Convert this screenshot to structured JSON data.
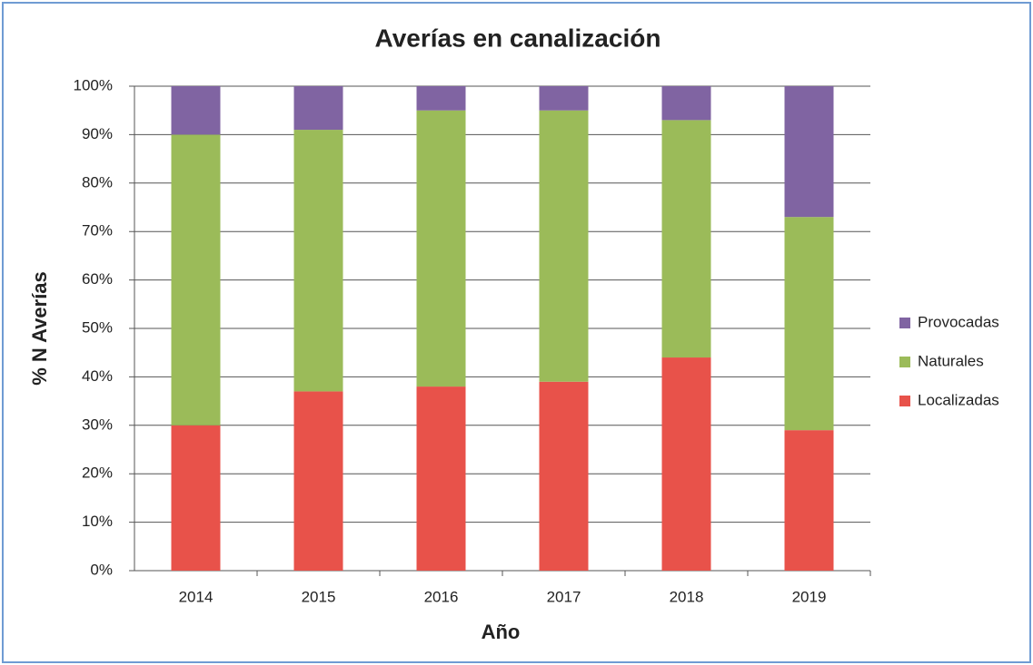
{
  "chart_data": {
    "type": "stacked_bar",
    "title": "Averías en canalización",
    "x_label": "Año",
    "y_label": "% N Averías",
    "categories": [
      "2014",
      "2015",
      "2016",
      "2017",
      "2018",
      "2019"
    ],
    "series": [
      {
        "name": "Localizadas",
        "color": "#e8524a",
        "values": [
          30,
          37,
          38,
          39,
          44,
          29
        ]
      },
      {
        "name": "Naturales",
        "color": "#9bbb59",
        "values": [
          60,
          54,
          57,
          56,
          49,
          44
        ]
      },
      {
        "name": "Provocadas",
        "color": "#8064a2",
        "values": [
          10,
          9,
          5,
          5,
          7,
          27
        ]
      }
    ],
    "ylim": [
      0,
      100
    ],
    "yticks": [
      {
        "value": 0,
        "label": "0%"
      },
      {
        "value": 10,
        "label": "10%"
      },
      {
        "value": 20,
        "label": "20%"
      },
      {
        "value": 30,
        "label": "30%"
      },
      {
        "value": 40,
        "label": "40%"
      },
      {
        "value": 50,
        "label": "50%"
      },
      {
        "value": 60,
        "label": "60%"
      },
      {
        "value": 70,
        "label": "70%"
      },
      {
        "value": 80,
        "label": "80%"
      },
      {
        "value": 90,
        "label": "90%"
      },
      {
        "value": 100,
        "label": "100%"
      }
    ],
    "grid": true,
    "legend": "right"
  }
}
